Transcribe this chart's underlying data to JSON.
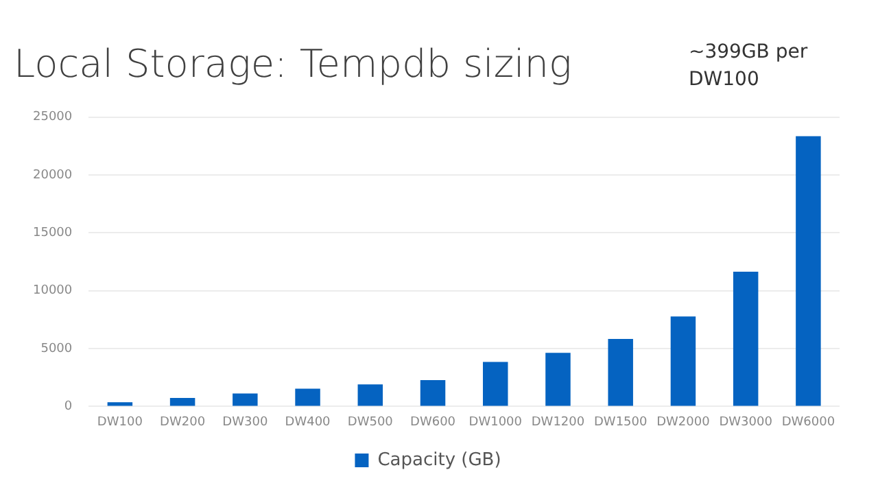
{
  "chart_data": {
    "type": "bar",
    "title": "Local Storage: Tempdb sizing",
    "annotations": [
      "~399GB per DW100"
    ],
    "categories": [
      "DW100",
      "DW200",
      "DW300",
      "DW400",
      "DW500",
      "DW600",
      "DW1000",
      "DW1200",
      "DW1500",
      "DW2000",
      "DW3000",
      "DW6000"
    ],
    "series": [
      {
        "name": "Capacity (GB)",
        "color": "#0563c1",
        "values": [
          370,
          740,
          1120,
          1530,
          1910,
          2280,
          3850,
          4640,
          5840,
          7780,
          11640,
          23360
        ]
      }
    ],
    "ylim": [
      0,
      25000
    ],
    "yticks": [
      0,
      5000,
      10000,
      15000,
      20000,
      25000
    ],
    "grid": "y",
    "legend": "bottom"
  }
}
